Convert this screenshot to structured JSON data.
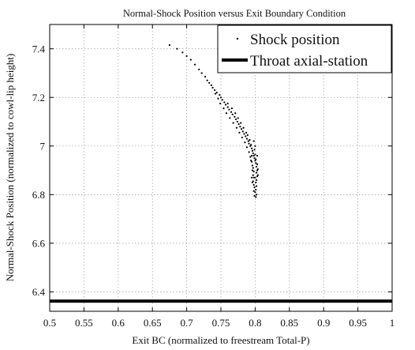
{
  "chart_data": {
    "type": "scatter",
    "title": "Normal-Shock Position versus Exit Boundary Condition",
    "xlabel": "Exit BC (normalized to freestream Total-P)",
    "ylabel": "Normal-Shock Position (normalized to cowl-lip height)",
    "xlim": [
      0.5,
      1.0
    ],
    "ylim": [
      6.32,
      7.5
    ],
    "xticks": [
      "0.5",
      "0.55",
      "0.6",
      "0.65",
      "0.7",
      "0.75",
      "0.8",
      "0.85",
      "0.9",
      "0.95",
      "1"
    ],
    "yticks": [
      "6.4",
      "6.6",
      "6.8",
      "7",
      "7.2",
      "7.4"
    ],
    "grid": true,
    "legend": {
      "position": "top-right",
      "entries": [
        "Shock position",
        "Throat axial-station"
      ]
    },
    "series": [
      {
        "name": "Shock position",
        "style": "dots",
        "color": "#000000",
        "points": [
          [
            0.675,
            7.415
          ],
          [
            0.686,
            7.4
          ],
          [
            0.694,
            7.385
          ],
          [
            0.7,
            7.37
          ],
          [
            0.706,
            7.355
          ],
          [
            0.712,
            7.335
          ],
          [
            0.718,
            7.315
          ],
          [
            0.722,
            7.3
          ],
          [
            0.727,
            7.285
          ],
          [
            0.73,
            7.27
          ],
          [
            0.733,
            7.26
          ],
          [
            0.736,
            7.25
          ],
          [
            0.738,
            7.24
          ],
          [
            0.741,
            7.23
          ],
          [
            0.744,
            7.22
          ],
          [
            0.742,
            7.215
          ],
          [
            0.748,
            7.21
          ],
          [
            0.75,
            7.2
          ],
          [
            0.746,
            7.195
          ],
          [
            0.752,
            7.19
          ],
          [
            0.755,
            7.18
          ],
          [
            0.749,
            7.175
          ],
          [
            0.757,
            7.17
          ],
          [
            0.76,
            7.16
          ],
          [
            0.754,
            7.155
          ],
          [
            0.762,
            7.15
          ],
          [
            0.765,
            7.14
          ],
          [
            0.758,
            7.135
          ],
          [
            0.767,
            7.13
          ],
          [
            0.77,
            7.12
          ],
          [
            0.763,
            7.115
          ],
          [
            0.772,
            7.11
          ],
          [
            0.774,
            7.1
          ],
          [
            0.768,
            7.095
          ],
          [
            0.776,
            7.09
          ],
          [
            0.778,
            7.08
          ],
          [
            0.773,
            7.075
          ],
          [
            0.78,
            7.07
          ],
          [
            0.782,
            7.06
          ],
          [
            0.777,
            7.055
          ],
          [
            0.784,
            7.05
          ],
          [
            0.786,
            7.04
          ],
          [
            0.781,
            7.035
          ],
          [
            0.788,
            7.03
          ],
          [
            0.79,
            7.02
          ],
          [
            0.785,
            7.015
          ],
          [
            0.791,
            7.01
          ],
          [
            0.793,
            7.0
          ],
          [
            0.788,
            6.995
          ],
          [
            0.795,
            6.99
          ],
          [
            0.796,
            6.98
          ],
          [
            0.791,
            6.975
          ],
          [
            0.797,
            6.97
          ],
          [
            0.798,
            6.96
          ],
          [
            0.793,
            6.955
          ],
          [
            0.799,
            6.95
          ],
          [
            0.8,
            6.94
          ],
          [
            0.795,
            6.935
          ],
          [
            0.801,
            6.93
          ],
          [
            0.796,
            6.92
          ],
          [
            0.802,
            6.915
          ],
          [
            0.797,
            6.91
          ],
          [
            0.803,
            6.9
          ],
          [
            0.798,
            6.895
          ],
          [
            0.802,
            6.89
          ],
          [
            0.797,
            6.88
          ],
          [
            0.803,
            6.875
          ],
          [
            0.798,
            6.87
          ],
          [
            0.802,
            6.86
          ],
          [
            0.797,
            6.855
          ],
          [
            0.801,
            6.85
          ],
          [
            0.798,
            6.84
          ],
          [
            0.802,
            6.835
          ],
          [
            0.799,
            6.83
          ],
          [
            0.801,
            6.82
          ],
          [
            0.798,
            6.815
          ],
          [
            0.8,
            6.81
          ],
          [
            0.802,
            6.8
          ],
          [
            0.799,
            6.795
          ],
          [
            0.801,
            6.79
          ],
          [
            0.76,
            7.175
          ],
          [
            0.766,
            7.155
          ],
          [
            0.771,
            7.135
          ],
          [
            0.775,
            7.115
          ],
          [
            0.779,
            7.095
          ],
          [
            0.783,
            7.075
          ],
          [
            0.787,
            7.055
          ],
          [
            0.789,
            7.045
          ],
          [
            0.792,
            7.025
          ],
          [
            0.794,
            7.005
          ],
          [
            0.799,
            6.985
          ],
          [
            0.8,
            6.965
          ],
          [
            0.801,
            6.945
          ],
          [
            0.803,
            6.925
          ],
          [
            0.804,
            6.905
          ],
          [
            0.795,
            6.96
          ],
          [
            0.794,
            6.94
          ],
          [
            0.796,
            6.9
          ],
          [
            0.795,
            6.87
          ],
          [
            0.796,
            6.85
          ],
          [
            0.8,
            7.0
          ],
          [
            0.798,
            7.02
          ],
          [
            0.803,
            6.96
          ],
          [
            0.804,
            6.88
          ],
          [
            0.8,
            6.87
          ]
        ]
      },
      {
        "name": "Throat axial-station",
        "style": "horizontal-line",
        "color": "#000000",
        "y": 6.362
      }
    ]
  }
}
